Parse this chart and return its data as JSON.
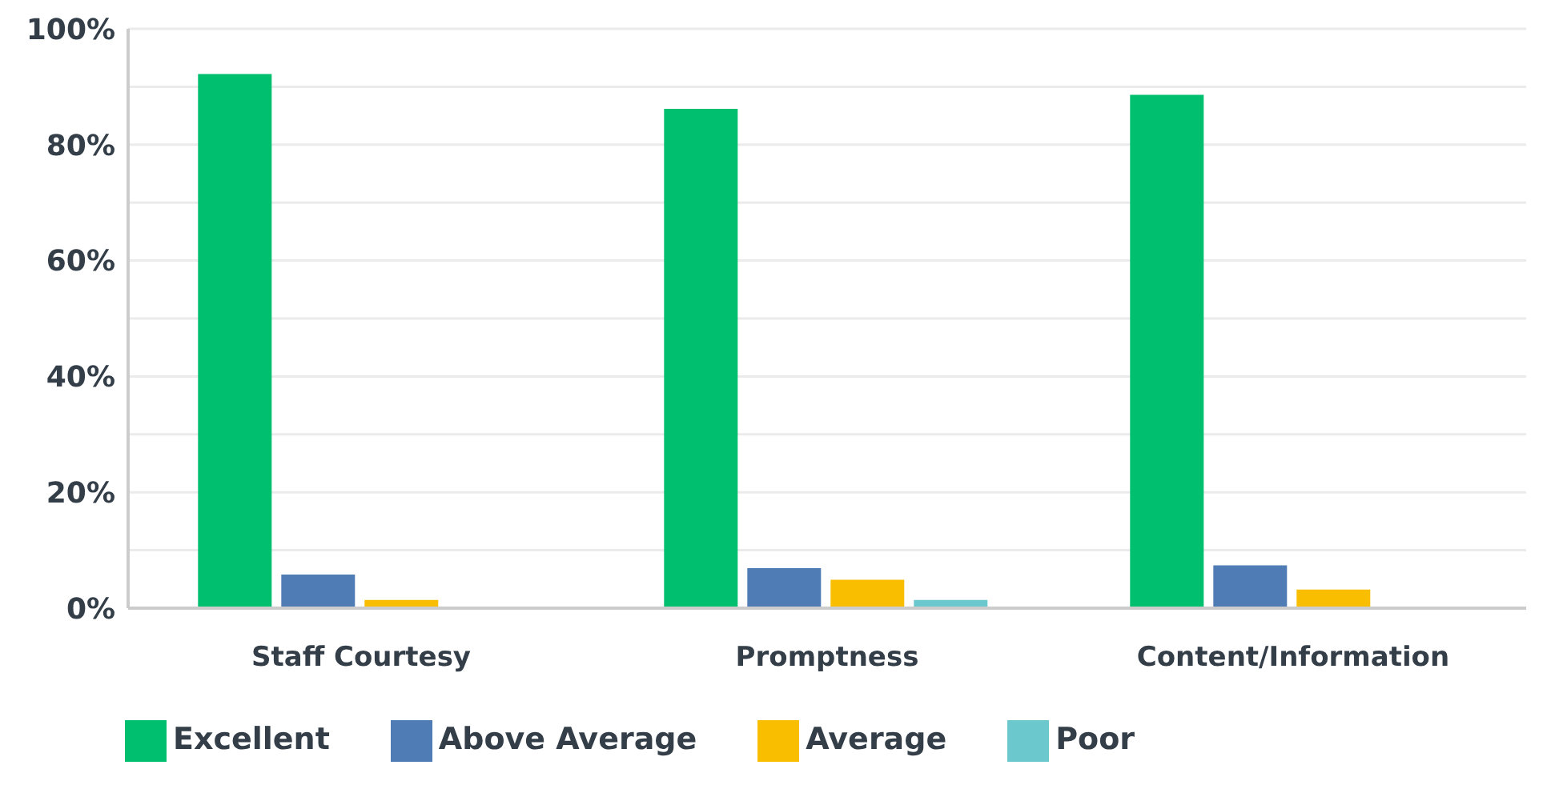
{
  "chart_data": {
    "type": "bar",
    "categories": [
      "Staff Courtesy",
      "Promptness",
      "Content/Information"
    ],
    "series": [
      {
        "name": "Excellent",
        "color": "#00bf6f",
        "values": [
          92.2,
          86.2,
          88.6
        ]
      },
      {
        "name": "Above Average",
        "color": "#507cb6",
        "values": [
          5.8,
          6.9,
          7.4
        ]
      },
      {
        "name": "Average",
        "color": "#f9be00",
        "values": [
          1.4,
          4.9,
          3.2
        ]
      },
      {
        "name": "Poor",
        "color": "#6bc8cd",
        "values": [
          0,
          1.4,
          0
        ]
      }
    ],
    "ylim": [
      0,
      100
    ],
    "yticks": [
      {
        "value": 0,
        "label": "0%"
      },
      {
        "value": 10,
        "label": null
      },
      {
        "value": 20,
        "label": "20%"
      },
      {
        "value": 30,
        "label": null
      },
      {
        "value": 40,
        "label": "40%"
      },
      {
        "value": 50,
        "label": null
      },
      {
        "value": 60,
        "label": "60%"
      },
      {
        "value": 70,
        "label": null
      },
      {
        "value": 80,
        "label": "80%"
      },
      {
        "value": 90,
        "label": null
      },
      {
        "value": 100,
        "label": "100%"
      }
    ],
    "grid": "y",
    "legend": "bottom"
  }
}
